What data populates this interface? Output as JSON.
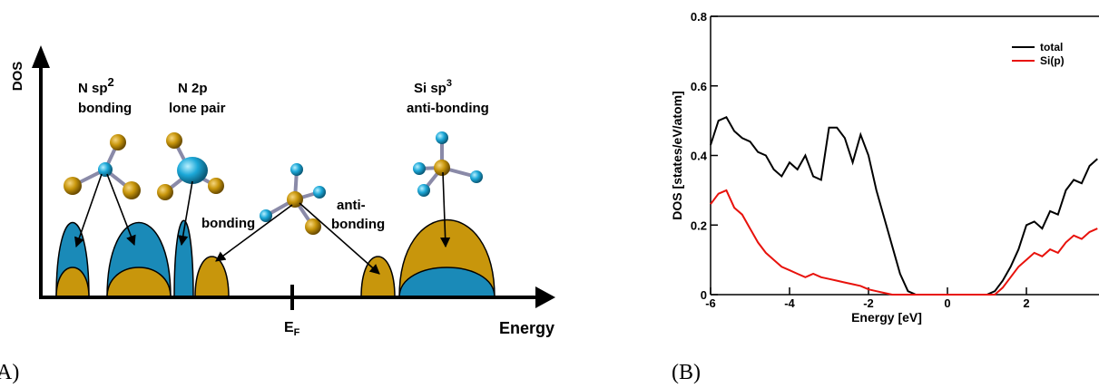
{
  "panel_a": {
    "label": "A)",
    "axis_y": "DOS",
    "axis_x": "Energy",
    "fermi": {
      "main": "E",
      "sub": "F"
    },
    "n_sp2": {
      "main": "N sp",
      "sup": "2",
      "line2": "bonding"
    },
    "n_2p": {
      "line1": "N 2p",
      "line2": "lone pair"
    },
    "si_sp3": {
      "main": "Si sp",
      "sup": "3",
      "line2": "anti-bonding"
    },
    "bonding": "bonding",
    "anti_bonding": {
      "line1": "anti-",
      "line2": "bonding"
    }
  },
  "chart_data": {
    "type": "line",
    "panel_label": "(B)",
    "xlabel": "Energy [eV]",
    "ylabel": "DOS [states/eV/atom]",
    "x": [
      -6,
      -5.8,
      -5.6,
      -5.4,
      -5.2,
      -5,
      -4.8,
      -4.6,
      -4.4,
      -4.2,
      -4,
      -3.8,
      -3.6,
      -3.4,
      -3.2,
      -3,
      -2.8,
      -2.6,
      -2.4,
      -2.2,
      -2,
      -1.8,
      -1.6,
      -1.4,
      -1.2,
      -1,
      -0.8,
      -0.6,
      -0.4,
      -0.2,
      0,
      0.2,
      0.4,
      0.6,
      0.8,
      1,
      1.2,
      1.4,
      1.6,
      1.8,
      2,
      2.2,
      2.4,
      2.6,
      2.8,
      3,
      3.2,
      3.4,
      3.6,
      3.8
    ],
    "series": [
      {
        "name": "total",
        "color": "#000000",
        "values": [
          0.43,
          0.5,
          0.51,
          0.47,
          0.45,
          0.44,
          0.41,
          0.4,
          0.36,
          0.34,
          0.38,
          0.36,
          0.4,
          0.34,
          0.33,
          0.48,
          0.48,
          0.45,
          0.38,
          0.46,
          0.4,
          0.3,
          0.22,
          0.14,
          0.06,
          0.01,
          0,
          0,
          0,
          0,
          0,
          0,
          0,
          0,
          0,
          0,
          0.01,
          0.04,
          0.08,
          0.13,
          0.2,
          0.21,
          0.19,
          0.24,
          0.23,
          0.3,
          0.33,
          0.32,
          0.37,
          0.39
        ]
      },
      {
        "name": "Si(p)",
        "color": "#e8120c",
        "values": [
          0.26,
          0.29,
          0.3,
          0.25,
          0.23,
          0.19,
          0.15,
          0.12,
          0.1,
          0.08,
          0.07,
          0.06,
          0.05,
          0.06,
          0.05,
          0.045,
          0.04,
          0.035,
          0.03,
          0.025,
          0.015,
          0.01,
          0.005,
          0,
          0,
          0,
          0,
          0,
          0,
          0,
          0,
          0,
          0,
          0,
          0,
          0,
          0,
          0.02,
          0.05,
          0.08,
          0.1,
          0.12,
          0.11,
          0.13,
          0.12,
          0.15,
          0.17,
          0.16,
          0.18,
          0.19
        ]
      }
    ],
    "xlim": [
      -6,
      3.85
    ],
    "xticks": [
      -6,
      -4,
      -2,
      0,
      2
    ],
    "ylim": [
      0,
      0.8
    ],
    "yticks": [
      0,
      0.2,
      0.4,
      0.6,
      0.8
    ],
    "legend": "upper right"
  }
}
